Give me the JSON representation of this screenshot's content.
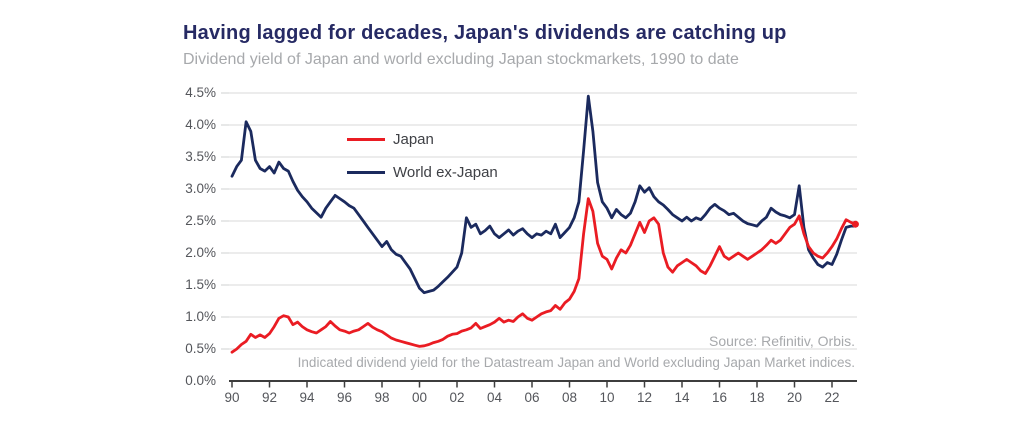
{
  "header": {
    "title": "Having lagged for decades, Japan's dividends are catching up",
    "subtitle": "Dividend yield of Japan and world excluding Japan stockmarkets, 1990 to date"
  },
  "annotations": {
    "source": "Source: Refinitiv, Orbis.",
    "footnote": "Indicated dividend yield for the Datastream Japan and World excluding Japan Market indices."
  },
  "colors": {
    "title": "#262a64",
    "muted_text": "#a7a9ac",
    "tick_text": "#54565b",
    "legend_text": "#3f4146",
    "grid": "#d9d9d9",
    "tick_dash": "#cfd0d2",
    "axis": "#3d3d3d",
    "japan_red": "#ea1c23",
    "world_navy": "#1b2a5e"
  },
  "chart_data": {
    "type": "line",
    "title": "Having lagged for decades, Japan's dividends are catching up",
    "subtitle": "Dividend yield of Japan and world excluding Japan stockmarkets, 1990 to date",
    "grid": "horizontal",
    "legend_position": "top-left-inside",
    "y_axis": {
      "unit": "%",
      "range": [
        0,
        4.5
      ],
      "tick_values": [
        0,
        0.5,
        1.0,
        1.5,
        2.0,
        2.5,
        3.0,
        3.5,
        4.0,
        4.5
      ],
      "tick_labels": [
        "0.0%",
        "0.5%",
        "1.0%",
        "1.5%",
        "2.0%",
        "2.5%",
        "3.0%",
        "3.5%",
        "4.0%",
        "4.5%"
      ]
    },
    "x_axis": {
      "range": [
        1990,
        2023.25
      ],
      "tick_years": [
        1990,
        1992,
        1994,
        1996,
        1998,
        2000,
        2002,
        2004,
        2006,
        2008,
        2010,
        2012,
        2014,
        2016,
        2018,
        2020,
        2022
      ],
      "tick_labels": [
        "90",
        "92",
        "94",
        "96",
        "98",
        "00",
        "02",
        "04",
        "06",
        "08",
        "10",
        "12",
        "14",
        "16",
        "18",
        "20",
        "22"
      ]
    },
    "sampling": {
      "x_start": 1990,
      "x_step": 0.25
    },
    "series": [
      {
        "name": "Japan",
        "color": "#ea1c23",
        "values": [
          0.45,
          0.5,
          0.57,
          0.62,
          0.73,
          0.68,
          0.72,
          0.68,
          0.74,
          0.85,
          0.98,
          1.02,
          1.0,
          0.88,
          0.92,
          0.85,
          0.8,
          0.77,
          0.75,
          0.8,
          0.85,
          0.93,
          0.86,
          0.8,
          0.78,
          0.75,
          0.78,
          0.8,
          0.85,
          0.9,
          0.84,
          0.8,
          0.77,
          0.72,
          0.67,
          0.64,
          0.62,
          0.6,
          0.58,
          0.56,
          0.54,
          0.55,
          0.57,
          0.6,
          0.62,
          0.65,
          0.7,
          0.73,
          0.74,
          0.78,
          0.8,
          0.83,
          0.9,
          0.82,
          0.85,
          0.88,
          0.92,
          0.98,
          0.92,
          0.95,
          0.93,
          1.0,
          1.05,
          0.98,
          0.95,
          1.0,
          1.05,
          1.08,
          1.1,
          1.18,
          1.12,
          1.22,
          1.28,
          1.4,
          1.6,
          2.3,
          2.85,
          2.65,
          2.15,
          1.95,
          1.9,
          1.75,
          1.92,
          2.05,
          2.0,
          2.12,
          2.3,
          2.48,
          2.32,
          2.5,
          2.55,
          2.45,
          2.0,
          1.78,
          1.7,
          1.8,
          1.85,
          1.9,
          1.85,
          1.8,
          1.72,
          1.68,
          1.8,
          1.95,
          2.1,
          1.95,
          1.9,
          1.95,
          2.0,
          1.95,
          1.9,
          1.95,
          2.0,
          2.05,
          2.12,
          2.2,
          2.15,
          2.2,
          2.3,
          2.4,
          2.45,
          2.58,
          2.3,
          2.1,
          2.0,
          1.95,
          1.92,
          2.0,
          2.1,
          2.22,
          2.38,
          2.52,
          2.48,
          2.45
        ]
      },
      {
        "name": "World ex-Japan",
        "color": "#1b2a5e",
        "values": [
          3.2,
          3.35,
          3.45,
          4.05,
          3.9,
          3.45,
          3.32,
          3.28,
          3.35,
          3.25,
          3.42,
          3.32,
          3.28,
          3.12,
          2.98,
          2.88,
          2.8,
          2.7,
          2.63,
          2.56,
          2.7,
          2.8,
          2.9,
          2.85,
          2.8,
          2.74,
          2.7,
          2.6,
          2.5,
          2.4,
          2.3,
          2.2,
          2.1,
          2.18,
          2.05,
          1.98,
          1.95,
          1.85,
          1.75,
          1.6,
          1.45,
          1.38,
          1.4,
          1.42,
          1.48,
          1.55,
          1.62,
          1.7,
          1.78,
          2.0,
          2.55,
          2.4,
          2.45,
          2.3,
          2.35,
          2.42,
          2.3,
          2.24,
          2.3,
          2.36,
          2.28,
          2.34,
          2.38,
          2.3,
          2.24,
          2.3,
          2.28,
          2.34,
          2.3,
          2.45,
          2.24,
          2.32,
          2.4,
          2.55,
          2.8,
          3.6,
          4.45,
          3.9,
          3.1,
          2.8,
          2.7,
          2.55,
          2.68,
          2.6,
          2.55,
          2.62,
          2.8,
          3.05,
          2.95,
          3.02,
          2.88,
          2.8,
          2.75,
          2.68,
          2.6,
          2.55,
          2.5,
          2.56,
          2.5,
          2.55,
          2.52,
          2.6,
          2.7,
          2.76,
          2.7,
          2.66,
          2.6,
          2.62,
          2.56,
          2.5,
          2.46,
          2.44,
          2.42,
          2.5,
          2.56,
          2.7,
          2.64,
          2.6,
          2.58,
          2.55,
          2.6,
          3.05,
          2.4,
          2.05,
          1.92,
          1.82,
          1.78,
          1.85,
          1.82,
          1.98,
          2.2,
          2.4,
          2.42,
          2.42
        ]
      }
    ],
    "end_marker": {
      "series": "Japan",
      "x": 2023.25,
      "value": 2.45
    }
  }
}
